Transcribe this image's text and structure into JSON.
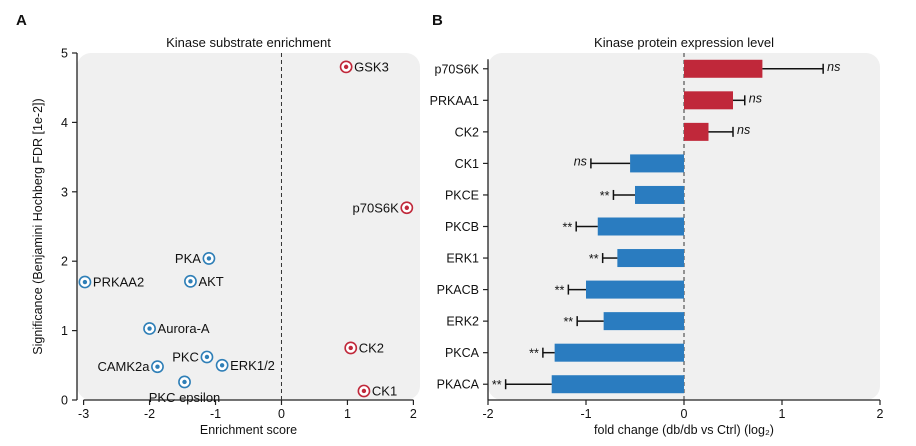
{
  "panels": {
    "a_letter": "A",
    "b_letter": "B"
  },
  "chart_data": [
    {
      "type": "scatter",
      "title": "Kinase substrate enrichment",
      "xlabel": "Enrichment score",
      "ylabel": "Significance (Benjamini Hochberg FDR [1e-2])",
      "xlim": [
        -3.1,
        2.1
      ],
      "ylim": [
        0,
        5
      ],
      "x_ticks": [
        -3,
        -2,
        -1,
        0,
        1,
        2
      ],
      "y_ticks": [
        0,
        1,
        2,
        3,
        4,
        5
      ],
      "reference_line_x": 0,
      "colors": {
        "negative": "#2f7fb7",
        "positive": "#c0283a",
        "background": "#f0f0f0"
      },
      "points": [
        {
          "label": "GSK3",
          "x": 0.98,
          "y": 4.8,
          "group": "positive",
          "label_side": "right"
        },
        {
          "label": "p70S6K",
          "x": 1.9,
          "y": 2.77,
          "group": "positive",
          "label_side": "left"
        },
        {
          "label": "CK2",
          "x": 1.05,
          "y": 0.75,
          "group": "positive",
          "label_side": "right"
        },
        {
          "label": "CK1",
          "x": 1.25,
          "y": 0.13,
          "group": "positive",
          "label_side": "right"
        },
        {
          "label": "PKA",
          "x": -1.1,
          "y": 2.04,
          "group": "negative",
          "label_side": "left"
        },
        {
          "label": "PRKAA2",
          "x": -2.98,
          "y": 1.7,
          "group": "negative",
          "label_side": "right"
        },
        {
          "label": "AKT",
          "x": -1.38,
          "y": 1.71,
          "group": "negative",
          "label_side": "right"
        },
        {
          "label": "Aurora-A",
          "x": -2.0,
          "y": 1.03,
          "group": "negative",
          "label_side": "right"
        },
        {
          "label": "PKC",
          "x": -1.13,
          "y": 0.62,
          "group": "negative",
          "label_side": "left"
        },
        {
          "label": "CAMK2a",
          "x": -1.88,
          "y": 0.48,
          "group": "negative",
          "label_side": "left"
        },
        {
          "label": "ERK1/2",
          "x": -0.9,
          "y": 0.5,
          "group": "negative",
          "label_side": "right"
        },
        {
          "label": "PKC epsilon",
          "x": -1.47,
          "y": 0.26,
          "group": "negative",
          "label_side": "below"
        }
      ]
    },
    {
      "type": "bar",
      "orientation": "horizontal",
      "title": "Kinase protein expression level",
      "xlabel": "fold change (db/db vs Ctrl) (log₂)",
      "xlim": [
        -2,
        2
      ],
      "x_ticks": [
        -2,
        -1,
        0,
        1,
        2
      ],
      "reference_line_x": 0,
      "colors": {
        "up": "#c0283a",
        "down": "#2a7cc0",
        "background": "#f0f0f0"
      },
      "categories": [
        "p70S6K",
        "PRKAA1",
        "CK2",
        "CK1",
        "PKCE",
        "PKCB",
        "ERK1",
        "PKACB",
        "ERK2",
        "PKCA",
        "PKACA"
      ],
      "values": [
        0.8,
        0.5,
        0.25,
        -0.55,
        -0.5,
        -0.88,
        -0.68,
        -1.0,
        -0.82,
        -1.32,
        -1.35
      ],
      "error": [
        0.62,
        0.12,
        0.25,
        0.4,
        0.22,
        0.22,
        0.15,
        0.18,
        0.27,
        0.12,
        0.47
      ],
      "significance": [
        "ns",
        "ns",
        "ns",
        "ns",
        "**",
        "**",
        "**",
        "**",
        "**",
        "**",
        "**"
      ]
    }
  ]
}
